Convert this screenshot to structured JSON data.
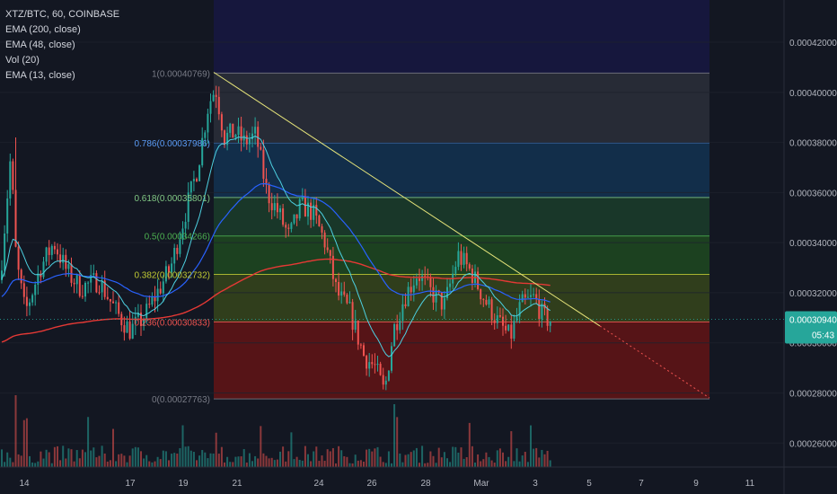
{
  "symbol_line": "XTZ/BTC, 60, COINBASE",
  "indicators": [
    "EMA (200, close)",
    "EMA (48, close)",
    "Vol (20)",
    "EMA (13, close)"
  ],
  "price_axis": {
    "ticks": [
      "0.00042000",
      "0.00040000",
      "0.00038000",
      "0.00036000",
      "0.00034000",
      "0.00032000",
      "0.00030000",
      "0.00028000",
      "0.00026000"
    ],
    "tick_values": [
      0.00042,
      0.0004,
      0.00038,
      0.00036,
      0.00034,
      0.00032,
      0.0003,
      0.00028,
      0.00026
    ],
    "last_price": "0.00030940",
    "countdown": "05:43"
  },
  "time_axis": {
    "labels": [
      "14",
      "17",
      "19",
      "21",
      "24",
      "26",
      "28",
      "Mar",
      "3",
      "5",
      "7",
      "9",
      "11"
    ]
  },
  "colors": {
    "background": "#131722",
    "up": "#26a69a",
    "down": "#ef5350",
    "ema200": "#e53935",
    "ema48": "#2962ff",
    "ema13": "#4dd0e1",
    "trendline": "#e6e47a",
    "last_price_label": "#26a69a"
  },
  "chart_data": {
    "type": "candlestick",
    "title": "XTZ/BTC, 60, COINBASE",
    "ylim": [
      0.000254,
      0.000434
    ],
    "fib_levels": [
      {
        "ratio": "1",
        "price": "0.00040769",
        "value": 0.00040769,
        "color": "#787b86",
        "fill": "#2a2e39"
      },
      {
        "ratio": "0.786",
        "price": "0.00037986",
        "value": 0.00037986,
        "color": "#5b9cf6",
        "fill": "#13314f"
      },
      {
        "ratio": "0.618",
        "price": "0.00035801",
        "value": 0.00035801,
        "color": "#81c784",
        "fill": "#1b3b2a"
      },
      {
        "ratio": "0.5",
        "price": "0.00034266",
        "value": 0.00034266,
        "color": "#4caf50",
        "fill": "#1e4620"
      },
      {
        "ratio": "0.382",
        "price": "0.00032732",
        "value": 0.00032732,
        "color": "#c0ca33",
        "fill": "#34421c"
      },
      {
        "ratio": "0.236",
        "price": "0.00030833",
        "value": 0.00030833,
        "color": "#ef5350",
        "fill": "#5e1416"
      },
      {
        "ratio": "0",
        "price": "0.00027763",
        "value": 0.00027763,
        "color": "#787b86",
        "fill": null
      }
    ],
    "trendline": {
      "from_price": 0.000408,
      "to_price": 0.000278
    },
    "path_keypoints": [
      [
        0,
        0.000325
      ],
      [
        12,
        0.000375
      ],
      [
        18,
        0.000333
      ],
      [
        28,
        0.000312
      ],
      [
        45,
        0.00033
      ],
      [
        60,
        0.00034
      ],
      [
        75,
        0.000328
      ],
      [
        90,
        0.000322
      ],
      [
        110,
        0.000325
      ],
      [
        130,
        0.000312
      ],
      [
        145,
        0.000305
      ],
      [
        160,
        0.00031
      ],
      [
        175,
        0.00032
      ],
      [
        190,
        0.00033
      ],
      [
        205,
        0.00035
      ],
      [
        220,
        0.00037
      ],
      [
        232,
        0.000395
      ],
      [
        240,
        0.000402
      ],
      [
        250,
        0.000382
      ],
      [
        262,
        0.000384
      ],
      [
        272,
        0.00038
      ],
      [
        285,
        0.000383
      ],
      [
        297,
        0.00036
      ],
      [
        310,
        0.000352
      ],
      [
        322,
        0.000342
      ],
      [
        335,
        0.000355
      ],
      [
        348,
        0.000352
      ],
      [
        362,
        0.00034
      ],
      [
        375,
        0.00032
      ],
      [
        390,
        0.000312
      ],
      [
        405,
        0.000295
      ],
      [
        418,
        0.00029
      ],
      [
        428,
        0.00028
      ],
      [
        438,
        0.000305
      ],
      [
        450,
        0.000318
      ],
      [
        465,
        0.000328
      ],
      [
        480,
        0.00032
      ],
      [
        495,
        0.000315
      ],
      [
        510,
        0.000335
      ],
      [
        525,
        0.000328
      ],
      [
        540,
        0.000317
      ],
      [
        555,
        0.000308
      ],
      [
        568,
        0.000302
      ],
      [
        580,
        0.000315
      ],
      [
        595,
        0.000318
      ],
      [
        605,
        0.00031
      ],
      [
        614,
        0.000309
      ]
    ]
  }
}
